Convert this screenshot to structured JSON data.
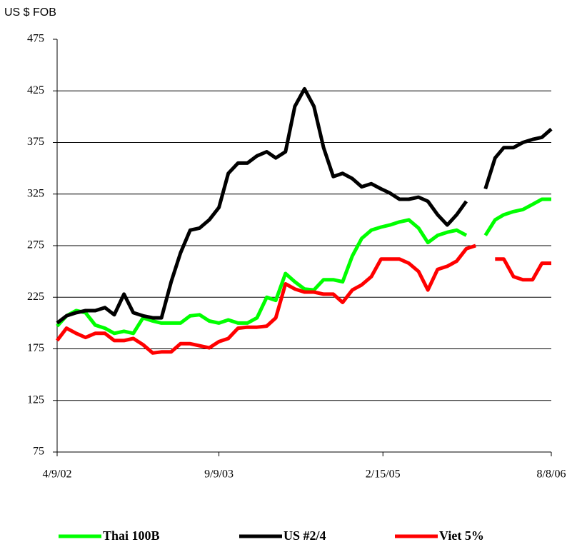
{
  "chart_data": {
    "type": "line",
    "y_axis_label": "US $ FOB",
    "x": [
      "2002-04-09",
      "2002-05-09",
      "2002-06-09",
      "2002-07-09",
      "2002-08-09",
      "2002-09-09",
      "2002-10-09",
      "2002-11-09",
      "2002-12-09",
      "2003-01-09",
      "2003-02-09",
      "2003-03-09",
      "2003-04-09",
      "2003-05-09",
      "2003-06-09",
      "2003-07-09",
      "2003-08-09",
      "2003-09-09",
      "2003-10-09",
      "2003-11-09",
      "2003-12-09",
      "2004-01-09",
      "2004-02-09",
      "2004-03-09",
      "2004-04-09",
      "2004-05-09",
      "2004-06-09",
      "2004-07-09",
      "2004-08-09",
      "2004-09-09",
      "2004-10-09",
      "2004-11-09",
      "2004-12-09",
      "2005-01-09",
      "2005-02-09",
      "2005-03-09",
      "2005-04-09",
      "2005-05-09",
      "2005-06-09",
      "2005-07-09",
      "2005-08-09",
      "2005-09-09",
      "2005-10-09",
      "2005-11-09",
      "2005-12-09",
      "2006-01-09",
      "2006-02-09",
      "2006-03-09",
      "2006-04-09",
      "2006-05-09",
      "2006-06-09",
      "2006-07-09",
      "2006-08-08"
    ],
    "series": [
      {
        "name": "Thai 100B",
        "color": "#00ff00",
        "values": [
          197,
          207,
          212,
          210,
          198,
          195,
          190,
          192,
          190,
          205,
          202,
          200,
          200,
          200,
          207,
          208,
          202,
          200,
          203,
          200,
          200,
          205,
          225,
          222,
          248,
          240,
          233,
          232,
          242,
          242,
          240,
          265,
          282,
          290,
          293,
          295,
          298,
          300,
          292,
          278,
          285,
          288,
          290,
          285,
          null,
          285,
          300,
          305,
          308,
          310,
          315,
          320,
          320
        ]
      },
      {
        "name": "US #2/4",
        "color": "#000000",
        "values": [
          200,
          207,
          210,
          212,
          212,
          215,
          208,
          228,
          210,
          207,
          205,
          205,
          240,
          268,
          290,
          292,
          300,
          312,
          345,
          355,
          355,
          362,
          366,
          360,
          366,
          410,
          427,
          410,
          370,
          342,
          345,
          340,
          332,
          335,
          330,
          326,
          320,
          320,
          322,
          318,
          305,
          295,
          305,
          318,
          null,
          330,
          360,
          370,
          370,
          375,
          378,
          380,
          388
        ]
      },
      {
        "name": "Viet 5%",
        "color": "#ff0000",
        "values": [
          183,
          195,
          190,
          186,
          190,
          190,
          183,
          183,
          185,
          179,
          171,
          172,
          172,
          180,
          180,
          178,
          176,
          182,
          185,
          195,
          196,
          196,
          197,
          205,
          238,
          233,
          230,
          230,
          228,
          228,
          220,
          232,
          237,
          245,
          262,
          262,
          262,
          258,
          250,
          232,
          252,
          255,
          260,
          272,
          275,
          null,
          262,
          262,
          245,
          242,
          242,
          258,
          258
        ]
      }
    ],
    "ylim": [
      75,
      475
    ],
    "yticks": [
      75,
      125,
      175,
      225,
      275,
      325,
      375,
      425,
      475
    ],
    "xlim": [
      "2002-04-09",
      "2006-08-08"
    ],
    "xticks": [
      {
        "value": "2002-04-09",
        "label": "4/9/02"
      },
      {
        "value": "2003-09-09",
        "label": "9/9/03"
      },
      {
        "value": "2005-02-15",
        "label": "2/15/05"
      },
      {
        "value": "2006-08-08",
        "label": "8/8/06"
      }
    ],
    "grid": true,
    "legend": "bottom"
  }
}
